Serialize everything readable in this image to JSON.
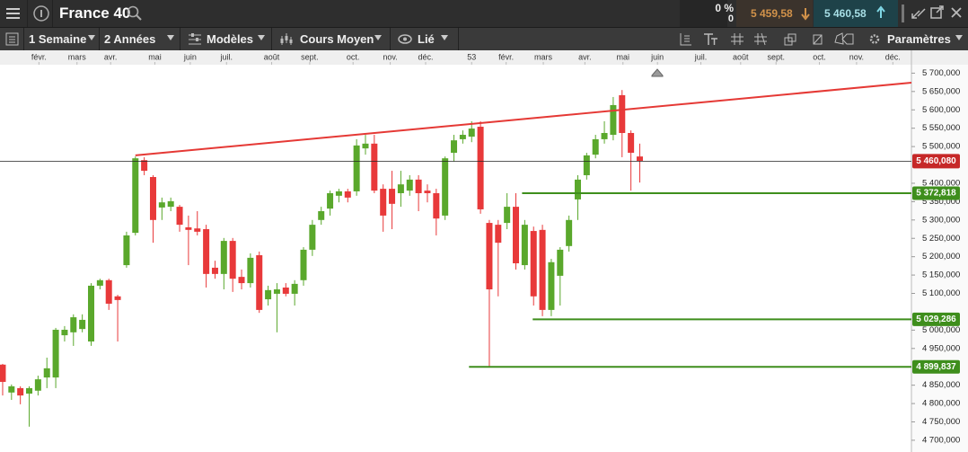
{
  "toolbar": {
    "instrument": "France 40",
    "change": "0 %",
    "change_points": "0",
    "sell": "5 459,58",
    "buy": "5 460,58"
  },
  "menu": {
    "period": "1 Semaine",
    "range": "2 Années",
    "templates": "Modèles",
    "price_type": "Cours Moyen",
    "link": "Lié",
    "settings": "Paramètres"
  },
  "chart_data": {
    "type": "candlestick",
    "x": [
      0,
      1,
      2,
      3,
      4,
      5,
      6,
      7,
      8,
      9,
      10,
      11,
      12,
      13,
      14,
      15,
      16,
      17,
      18,
      19,
      20,
      21,
      22,
      23,
      24,
      25,
      26,
      27,
      28,
      29,
      30,
      31,
      32,
      33,
      34,
      35,
      36,
      37,
      38,
      39,
      40,
      41,
      42,
      43,
      44,
      45,
      46,
      47,
      48,
      49,
      50,
      51,
      52,
      53,
      54,
      55,
      56,
      57,
      58,
      59,
      60,
      61,
      62,
      63,
      64,
      65,
      66,
      67,
      68,
      69,
      70,
      71,
      72
    ],
    "open": [
      4906,
      4830,
      4842,
      4827,
      4835,
      4871,
      4871,
      4986,
      4994,
      5003,
      4969,
      5121,
      5136,
      5092,
      5177,
      5265,
      5463,
      5417,
      5334,
      5336,
      5336,
      5280,
      5277,
      5275,
      5170,
      5153,
      5243,
      5145,
      5128,
      5204,
      5084,
      5099,
      5116,
      5099,
      5136,
      5219,
      5300,
      5331,
      5366,
      5378,
      5378,
      5495,
      5508,
      5385,
      5385,
      5373,
      5380,
      5410,
      5380,
      5373,
      5312,
      5483,
      5520,
      5527,
      5554,
      5292,
      5287,
      5292,
      5336,
      5177,
      5270,
      5273,
      5055,
      5148,
      5229,
      5356,
      5422,
      5478,
      5520,
      5532,
      5640,
      5537,
      5473
    ],
    "high": [
      4908,
      4852,
      4847,
      4847,
      4876,
      4925,
      5006,
      5011,
      5043,
      5043,
      5128,
      5140,
      5140,
      5096,
      5268,
      5473,
      5471,
      5422,
      5361,
      5361,
      5341,
      5312,
      5324,
      5287,
      5189,
      5251,
      5251,
      5165,
      5209,
      5214,
      5121,
      5128,
      5128,
      5136,
      5226,
      5300,
      5336,
      5380,
      5385,
      5385,
      5520,
      5532,
      5532,
      5397,
      5434,
      5434,
      5422,
      5422,
      5397,
      5385,
      5473,
      5532,
      5544,
      5569,
      5569,
      5300,
      5300,
      5373,
      5373,
      5300,
      5282,
      5287,
      5194,
      5226,
      5312,
      5422,
      5483,
      5532,
      5569,
      5635,
      5654,
      5544,
      5508
    ],
    "low": [
      4822,
      4810,
      4798,
      4737,
      4822,
      4842,
      4842,
      4969,
      4957,
      4994,
      4957,
      5111,
      5055,
      4969,
      5170,
      5258,
      5422,
      5238,
      5300,
      5324,
      5268,
      5177,
      5258,
      5116,
      5140,
      5111,
      5104,
      5111,
      5116,
      5047,
      5067,
      4994,
      5092,
      5067,
      5121,
      5202,
      5287,
      5312,
      5348,
      5348,
      5366,
      5478,
      5373,
      5268,
      5275,
      5336,
      5366,
      5324,
      5348,
      5258,
      5300,
      5459,
      5508,
      5512,
      5317,
      4901,
      5092,
      5275,
      5165,
      5165,
      5067,
      5038,
      5038,
      5067,
      5214,
      5300,
      5410,
      5468,
      5508,
      5517,
      5471,
      5380,
      5402
    ],
    "close": [
      4859,
      4847,
      4822,
      4842,
      4866,
      4896,
      5001,
      5001,
      5035,
      5028,
      5121,
      5136,
      5072,
      5082,
      5258,
      5468,
      5434,
      5300,
      5348,
      5351,
      5287,
      5273,
      5268,
      5153,
      5153,
      5243,
      5140,
      5128,
      5197,
      5055,
      5109,
      5111,
      5099,
      5126,
      5219,
      5287,
      5324,
      5373,
      5378,
      5361,
      5503,
      5508,
      5380,
      5312,
      5344,
      5397,
      5410,
      5373,
      5373,
      5304,
      5468,
      5517,
      5532,
      5549,
      5329,
      5111,
      5238,
      5336,
      5182,
      5287,
      5092,
      5055,
      5185,
      5219,
      5300,
      5410,
      5476,
      5520,
      5537,
      5613,
      5537,
      5483,
      5460.08
    ],
    "up_color": "#5aa82c",
    "down_color": "#e8393a",
    "xlim": [
      -0.3,
      102.7
    ],
    "xticks": [
      {
        "value": 4.1,
        "label": "févr."
      },
      {
        "value": 8.4,
        "label": "mars"
      },
      {
        "value": 12.2,
        "label": "avr."
      },
      {
        "value": 17.2,
        "label": "mai"
      },
      {
        "value": 21.2,
        "label": "juin"
      },
      {
        "value": 25.3,
        "label": "juil."
      },
      {
        "value": 30.4,
        "label": "août"
      },
      {
        "value": 34.7,
        "label": "sept."
      },
      {
        "value": 39.6,
        "label": "oct."
      },
      {
        "value": 43.8,
        "label": "nov."
      },
      {
        "value": 47.8,
        "label": "déc."
      },
      53,
      {
        "value": 56.9,
        "label": "févr."
      },
      {
        "value": 61.1,
        "label": "mars"
      },
      {
        "value": 65.8,
        "label": "avr."
      },
      {
        "value": 70.1,
        "label": "mai"
      },
      {
        "value": 74,
        "label": "juin"
      },
      {
        "value": 78.9,
        "label": "juil."
      },
      {
        "value": 83.4,
        "label": "août"
      },
      {
        "value": 87.4,
        "label": "sept."
      },
      {
        "value": 92.3,
        "label": "oct."
      },
      {
        "value": 96.5,
        "label": "nov."
      },
      {
        "value": 100.6,
        "label": "déc."
      }
    ],
    "ylim": [
      4668,
      5723
    ],
    "yticks": [
      {
        "value": 4700,
        "label": "4 700,000"
      },
      {
        "value": 4750,
        "label": "4 750,000"
      },
      {
        "value": 4800,
        "label": "4 800,000"
      },
      {
        "value": 4850,
        "label": "4 850,000"
      },
      {
        "value": 4950,
        "label": "4 950,000"
      },
      {
        "value": 5000,
        "label": "5 000,000"
      },
      {
        "value": 5100,
        "label": "5 100,000"
      },
      {
        "value": 5150,
        "label": "5 150,000"
      },
      {
        "value": 5200,
        "label": "5 200,000"
      },
      {
        "value": 5250,
        "label": "5 250,000"
      },
      {
        "value": 5300,
        "label": "5 300,000"
      },
      {
        "value": 5350,
        "label": "5 350,000"
      },
      {
        "value": 5400,
        "label": "5 400,000"
      },
      {
        "value": 5500,
        "label": "5 500,000"
      },
      {
        "value": 5550,
        "label": "5 550,000"
      },
      {
        "value": 5600,
        "label": "5 600,000"
      },
      {
        "value": 5650,
        "label": "5 650,000"
      },
      {
        "value": 5700,
        "label": "5 700,000"
      }
    ],
    "last_price": {
      "value": 5460.08,
      "label": "5 460,080",
      "color": "#c62828"
    },
    "trendline": {
      "x": [
        15,
        102.7
      ],
      "y": [
        5476,
        5674
      ],
      "color": "#e53935"
    },
    "levels": [
      {
        "x": 58.7,
        "value": 5372.818,
        "label": "5 372,818"
      },
      {
        "x": 59.9,
        "value": 5029.286,
        "label": "5 029,286"
      },
      {
        "x": 52.7,
        "value": 4899.837,
        "label": "4 899,837"
      }
    ],
    "level_color": "#3e8e1c"
  }
}
